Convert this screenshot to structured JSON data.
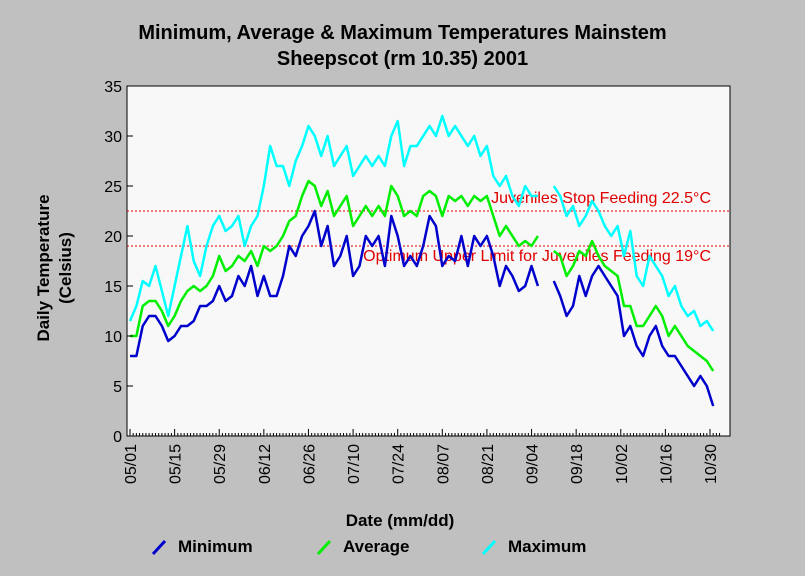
{
  "chart_data": {
    "type": "line",
    "title_line1": "Minimum, Average & Maximum Temperatures Mainstem",
    "title_line2": "Sheepscot (rm 10.35) 2001",
    "xlabel": "Date (mm/dd)",
    "ylabel_line1": "Daily Temperature",
    "ylabel_line2": "(Celsius)",
    "ylim": [
      0,
      35
    ],
    "yticks": [
      "0",
      "5",
      "10",
      "15",
      "20",
      "25",
      "30",
      "35"
    ],
    "xticks": [
      "05/01",
      "05/15",
      "05/29",
      "06/12",
      "06/26",
      "07/10",
      "07/24",
      "08/07",
      "08/21",
      "09/04",
      "09/18",
      "10/02",
      "10/16",
      "10/30"
    ],
    "x_start": "05/01",
    "x_end": "11/02",
    "reference_lines": [
      {
        "label": "Juveniles Stop Feeding 22.5°C",
        "value": 22.5,
        "color": "#e00000"
      },
      {
        "label": "Optimum Upper Limit for Juveniles Feeding 19°C",
        "value": 19,
        "color": "#e00000"
      }
    ],
    "series": [
      {
        "name": "Minimum",
        "color": "#0000cc",
        "points": [
          [
            "05/01",
            8
          ],
          [
            "05/03",
            8
          ],
          [
            "05/05",
            11
          ],
          [
            "05/07",
            12
          ],
          [
            "05/09",
            12
          ],
          [
            "05/11",
            11
          ],
          [
            "05/13",
            9.5
          ],
          [
            "05/15",
            10
          ],
          [
            "05/17",
            11
          ],
          [
            "05/19",
            11
          ],
          [
            "05/21",
            11.5
          ],
          [
            "05/23",
            13
          ],
          [
            "05/25",
            13
          ],
          [
            "05/27",
            13.5
          ],
          [
            "05/29",
            15
          ],
          [
            "05/31",
            13.5
          ],
          [
            "06/02",
            14
          ],
          [
            "06/04",
            16
          ],
          [
            "06/06",
            15
          ],
          [
            "06/08",
            17
          ],
          [
            "06/10",
            14
          ],
          [
            "06/12",
            16
          ],
          [
            "06/14",
            14
          ],
          [
            "06/16",
            14
          ],
          [
            "06/18",
            16
          ],
          [
            "06/20",
            19
          ],
          [
            "06/22",
            18
          ],
          [
            "06/24",
            20
          ],
          [
            "06/26",
            21
          ],
          [
            "06/28",
            22.5
          ],
          [
            "06/30",
            19
          ],
          [
            "07/02",
            21
          ],
          [
            "07/04",
            17
          ],
          [
            "07/06",
            18
          ],
          [
            "07/08",
            20
          ],
          [
            "07/10",
            16
          ],
          [
            "07/12",
            17
          ],
          [
            "07/14",
            20
          ],
          [
            "07/16",
            19
          ],
          [
            "07/18",
            20
          ],
          [
            "07/20",
            17
          ],
          [
            "07/22",
            22
          ],
          [
            "07/24",
            20
          ],
          [
            "07/26",
            17
          ],
          [
            "07/28",
            18
          ],
          [
            "07/30",
            17
          ],
          [
            "08/01",
            19
          ],
          [
            "08/03",
            22
          ],
          [
            "08/05",
            21
          ],
          [
            "08/07",
            17
          ],
          [
            "08/09",
            18
          ],
          [
            "08/11",
            17.5
          ],
          [
            "08/13",
            20
          ],
          [
            "08/15",
            17
          ],
          [
            "08/17",
            20
          ],
          [
            "08/19",
            19
          ],
          [
            "08/21",
            20
          ],
          [
            "08/23",
            18
          ],
          [
            "08/25",
            15
          ],
          [
            "08/27",
            17
          ],
          [
            "08/29",
            16
          ],
          [
            "08/31",
            14.5
          ],
          [
            "09/02",
            15
          ],
          [
            "09/04",
            17
          ],
          [
            "09/06",
            15
          ]
        ],
        "points2": [
          [
            "09/11",
            15.5
          ],
          [
            "09/13",
            14
          ],
          [
            "09/15",
            12
          ],
          [
            "09/17",
            13
          ],
          [
            "09/19",
            16
          ],
          [
            "09/21",
            14
          ],
          [
            "09/23",
            16
          ],
          [
            "09/25",
            17
          ],
          [
            "09/27",
            16
          ],
          [
            "09/29",
            15
          ],
          [
            "10/01",
            14
          ],
          [
            "10/03",
            10
          ],
          [
            "10/05",
            11
          ],
          [
            "10/07",
            9
          ],
          [
            "10/09",
            8
          ],
          [
            "10/11",
            10
          ],
          [
            "10/13",
            11
          ],
          [
            "10/15",
            9
          ],
          [
            "10/17",
            8
          ],
          [
            "10/19",
            8
          ],
          [
            "10/21",
            7
          ],
          [
            "10/23",
            6
          ],
          [
            "10/25",
            5
          ],
          [
            "10/27",
            6
          ],
          [
            "10/29",
            5
          ],
          [
            "10/31",
            3
          ]
        ]
      },
      {
        "name": "Average",
        "color": "#00ee00",
        "points": [
          [
            "05/01",
            10
          ],
          [
            "05/03",
            10
          ],
          [
            "05/05",
            13
          ],
          [
            "05/07",
            13.5
          ],
          [
            "05/09",
            13.5
          ],
          [
            "05/11",
            12.5
          ],
          [
            "05/13",
            11
          ],
          [
            "05/15",
            12
          ],
          [
            "05/17",
            13.5
          ],
          [
            "05/19",
            14.5
          ],
          [
            "05/21",
            15
          ],
          [
            "05/23",
            14.5
          ],
          [
            "05/25",
            15
          ],
          [
            "05/27",
            16
          ],
          [
            "05/29",
            18
          ],
          [
            "05/31",
            16.5
          ],
          [
            "06/02",
            17
          ],
          [
            "06/04",
            18
          ],
          [
            "06/06",
            17.5
          ],
          [
            "06/08",
            18.5
          ],
          [
            "06/10",
            17
          ],
          [
            "06/12",
            19
          ],
          [
            "06/14",
            18.5
          ],
          [
            "06/16",
            19
          ],
          [
            "06/18",
            20
          ],
          [
            "06/20",
            21.5
          ],
          [
            "06/22",
            22
          ],
          [
            "06/24",
            24
          ],
          [
            "06/26",
            25.5
          ],
          [
            "06/28",
            25
          ],
          [
            "06/30",
            23
          ],
          [
            "07/02",
            24.5
          ],
          [
            "07/04",
            22
          ],
          [
            "07/06",
            23
          ],
          [
            "07/08",
            24
          ],
          [
            "07/10",
            21
          ],
          [
            "07/12",
            22
          ],
          [
            "07/14",
            23
          ],
          [
            "07/16",
            22
          ],
          [
            "07/18",
            23
          ],
          [
            "07/20",
            22
          ],
          [
            "07/22",
            25
          ],
          [
            "07/24",
            24
          ],
          [
            "07/26",
            22
          ],
          [
            "07/28",
            22.5
          ],
          [
            "07/30",
            22
          ],
          [
            "08/01",
            24
          ],
          [
            "08/03",
            24.5
          ],
          [
            "08/05",
            24
          ],
          [
            "08/07",
            22
          ],
          [
            "08/09",
            24
          ],
          [
            "08/11",
            23.5
          ],
          [
            "08/13",
            24
          ],
          [
            "08/15",
            23
          ],
          [
            "08/17",
            24
          ],
          [
            "08/19",
            23.5
          ],
          [
            "08/21",
            24
          ],
          [
            "08/23",
            22
          ],
          [
            "08/25",
            20
          ],
          [
            "08/27",
            21
          ],
          [
            "08/29",
            20
          ],
          [
            "08/31",
            19
          ],
          [
            "09/02",
            19.5
          ],
          [
            "09/04",
            19
          ],
          [
            "09/06",
            20
          ]
        ],
        "points2": [
          [
            "09/11",
            18.5
          ],
          [
            "09/13",
            18
          ],
          [
            "09/15",
            16
          ],
          [
            "09/17",
            17
          ],
          [
            "09/19",
            18.5
          ],
          [
            "09/21",
            18
          ],
          [
            "09/23",
            19.5
          ],
          [
            "09/25",
            18
          ],
          [
            "09/27",
            17
          ],
          [
            "09/29",
            16.5
          ],
          [
            "10/01",
            16
          ],
          [
            "10/03",
            13
          ],
          [
            "10/05",
            13
          ],
          [
            "10/07",
            11
          ],
          [
            "10/09",
            11
          ],
          [
            "10/11",
            12
          ],
          [
            "10/13",
            13
          ],
          [
            "10/15",
            12
          ],
          [
            "10/17",
            10
          ],
          [
            "10/19",
            11
          ],
          [
            "10/21",
            10
          ],
          [
            "10/23",
            9
          ],
          [
            "10/25",
            8.5
          ],
          [
            "10/27",
            8
          ],
          [
            "10/29",
            7.5
          ],
          [
            "10/31",
            6.5
          ]
        ]
      },
      {
        "name": "Maximum",
        "color": "#00ffff",
        "points": [
          [
            "05/01",
            11.5
          ],
          [
            "05/03",
            13
          ],
          [
            "05/05",
            15.5
          ],
          [
            "05/07",
            15
          ],
          [
            "05/09",
            17
          ],
          [
            "05/11",
            14.5
          ],
          [
            "05/13",
            12
          ],
          [
            "05/15",
            15
          ],
          [
            "05/17",
            18
          ],
          [
            "05/19",
            21
          ],
          [
            "05/21",
            17.5
          ],
          [
            "05/23",
            16
          ],
          [
            "05/25",
            19
          ],
          [
            "05/27",
            21
          ],
          [
            "05/29",
            22
          ],
          [
            "05/31",
            20.5
          ],
          [
            "06/02",
            21
          ],
          [
            "06/04",
            22
          ],
          [
            "06/06",
            19
          ],
          [
            "06/08",
            21
          ],
          [
            "06/10",
            22
          ],
          [
            "06/12",
            25
          ],
          [
            "06/14",
            29
          ],
          [
            "06/16",
            27
          ],
          [
            "06/18",
            27
          ],
          [
            "06/20",
            25
          ],
          [
            "06/22",
            27.5
          ],
          [
            "06/24",
            29
          ],
          [
            "06/26",
            31
          ],
          [
            "06/28",
            30
          ],
          [
            "06/30",
            28
          ],
          [
            "07/02",
            30
          ],
          [
            "07/04",
            27
          ],
          [
            "07/06",
            28
          ],
          [
            "07/08",
            29
          ],
          [
            "07/10",
            26
          ],
          [
            "07/12",
            27
          ],
          [
            "07/14",
            28
          ],
          [
            "07/16",
            27
          ],
          [
            "07/18",
            28
          ],
          [
            "07/20",
            27
          ],
          [
            "07/22",
            30
          ],
          [
            "07/24",
            31.5
          ],
          [
            "07/26",
            27
          ],
          [
            "07/28",
            29
          ],
          [
            "07/30",
            29
          ],
          [
            "08/01",
            30
          ],
          [
            "08/03",
            31
          ],
          [
            "08/05",
            30
          ],
          [
            "08/07",
            32
          ],
          [
            "08/09",
            30
          ],
          [
            "08/11",
            31
          ],
          [
            "08/13",
            30
          ],
          [
            "08/15",
            29
          ],
          [
            "08/17",
            30
          ],
          [
            "08/19",
            28
          ],
          [
            "08/21",
            29
          ],
          [
            "08/23",
            26
          ],
          [
            "08/25",
            25
          ],
          [
            "08/27",
            26
          ],
          [
            "08/29",
            24
          ],
          [
            "08/31",
            23
          ],
          [
            "09/02",
            25
          ],
          [
            "09/04",
            24
          ],
          [
            "09/06",
            24
          ]
        ],
        "points2": [
          [
            "09/11",
            25
          ],
          [
            "09/13",
            24
          ],
          [
            "09/15",
            22
          ],
          [
            "09/17",
            23
          ],
          [
            "09/19",
            21
          ],
          [
            "09/21",
            22
          ],
          [
            "09/23",
            23.5
          ],
          [
            "09/25",
            22.5
          ],
          [
            "09/27",
            21
          ],
          [
            "09/29",
            20
          ],
          [
            "10/01",
            21
          ],
          [
            "10/03",
            18
          ],
          [
            "10/05",
            20.5
          ],
          [
            "10/07",
            16
          ],
          [
            "10/09",
            15
          ],
          [
            "10/11",
            18
          ],
          [
            "10/13",
            17
          ],
          [
            "10/15",
            16
          ],
          [
            "10/17",
            14
          ],
          [
            "10/19",
            15
          ],
          [
            "10/21",
            13
          ],
          [
            "10/23",
            12
          ],
          [
            "10/25",
            12.5
          ],
          [
            "10/27",
            11
          ],
          [
            "10/29",
            11.5
          ],
          [
            "10/31",
            10.5
          ]
        ]
      }
    ]
  }
}
